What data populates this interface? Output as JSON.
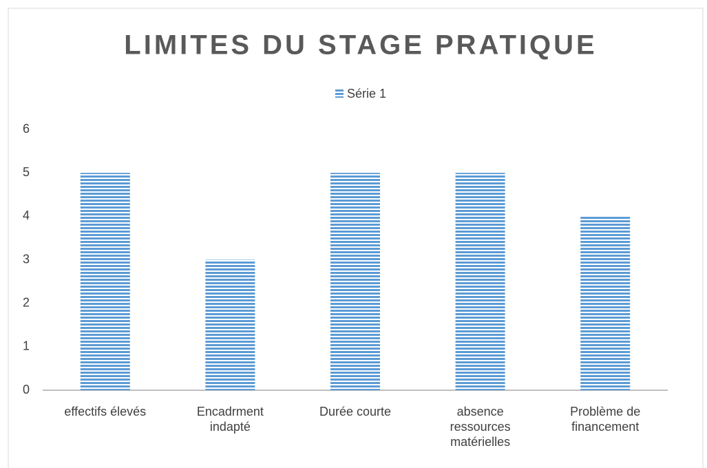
{
  "chart_data": {
    "type": "bar",
    "title": "LIMITES DU STAGE PRATIQUE",
    "categories": [
      "effectifs élevés",
      "Encadrment indapté",
      "Durée courte",
      "absence ressources matérielles",
      "Problème de financement"
    ],
    "series": [
      {
        "name": "Série 1",
        "color": "#5b9bd5",
        "values": [
          5,
          3,
          5,
          5,
          4
        ]
      }
    ],
    "ylim": [
      0,
      6
    ],
    "yticks": [
      0,
      1,
      2,
      3,
      4,
      5,
      6
    ],
    "grid": false,
    "legend": "top"
  }
}
